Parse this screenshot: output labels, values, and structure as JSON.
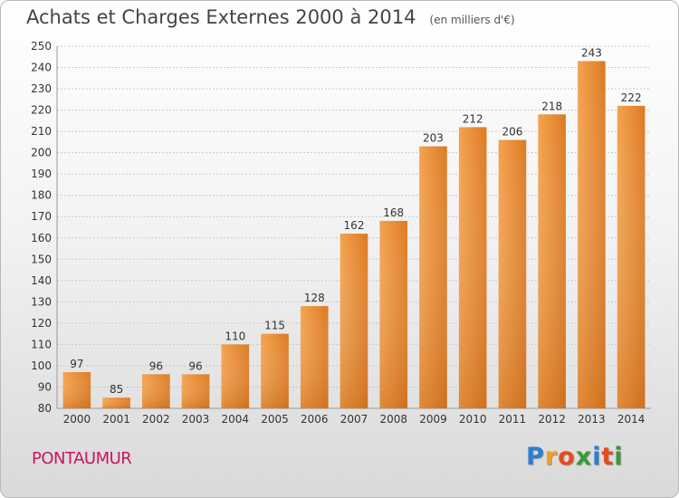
{
  "chart_data": {
    "type": "bar",
    "title": "Achats et Charges Externes 2000 à 2014",
    "unit_label": "(en milliers d'€)",
    "categories": [
      "2000",
      "2001",
      "2002",
      "2003",
      "2004",
      "2005",
      "2006",
      "2007",
      "2008",
      "2009",
      "2010",
      "2011",
      "2012",
      "2013",
      "2014"
    ],
    "values": [
      97,
      85,
      96,
      96,
      110,
      115,
      128,
      162,
      168,
      203,
      212,
      206,
      218,
      243,
      222
    ],
    "xlabel": "",
    "ylabel": "",
    "ylim": [
      80,
      250
    ],
    "yticks": [
      80,
      90,
      100,
      110,
      120,
      130,
      140,
      150,
      160,
      170,
      180,
      190,
      200,
      210,
      220,
      230,
      240,
      250
    ],
    "grid": true,
    "bar_color": "#f0923a",
    "bar_color_dark": "#d9781f"
  },
  "place": "PONTAUMUR",
  "brand": {
    "letters": [
      "P",
      "r",
      "o",
      "x",
      "i",
      "t",
      "i"
    ],
    "colors": [
      "#2a7fd4",
      "#f0a020",
      "#e8491e",
      "#3a9a3a",
      "#2a7fd4",
      "#e8491e",
      "#3a9a3a"
    ]
  }
}
